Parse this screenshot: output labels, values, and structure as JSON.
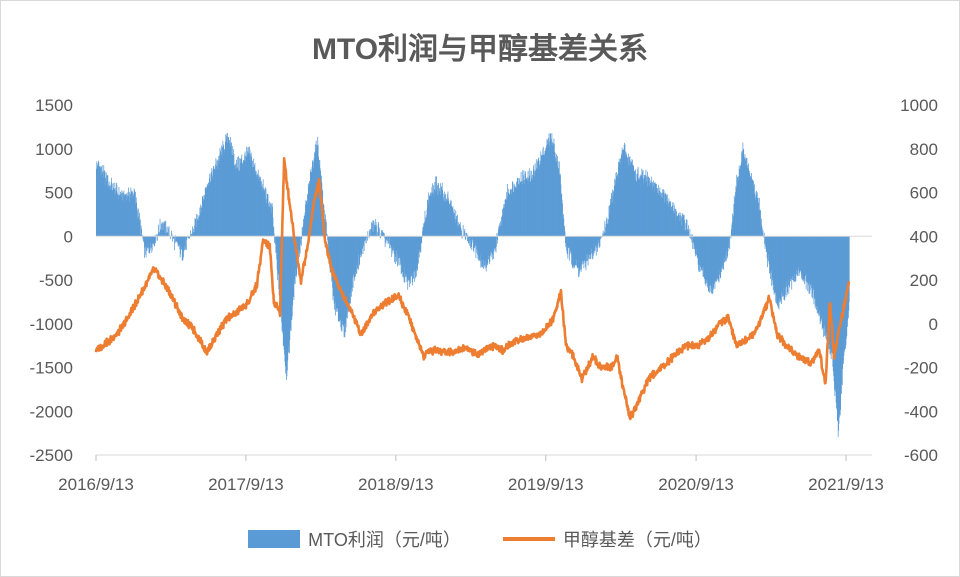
{
  "chart_data": {
    "type": "bar+line",
    "title": "MTO利润与甲醇基差关系",
    "x_tick_labels": [
      "2016/9/13",
      "2017/9/13",
      "2018/9/13",
      "2019/9/13",
      "2020/9/13",
      "2021/9/13"
    ],
    "y_left": {
      "min": -2500,
      "max": 1500,
      "ticks": [
        "1500",
        "1000",
        "500",
        "0",
        "-500",
        "-1000",
        "-1500",
        "-2000",
        "-2500"
      ]
    },
    "y_right": {
      "min": -600,
      "max": 1000,
      "ticks": [
        "1000",
        "800",
        "600",
        "400",
        "200",
        "0",
        "-200",
        "-400",
        "-600"
      ]
    },
    "series": [
      {
        "name": "MTO利润（元/吨）",
        "kind": "bar",
        "axis": "left",
        "color": "#5b9bd5",
        "points": [
          [
            "2016-09-13",
            850
          ],
          [
            "2016-10-15",
            600
          ],
          [
            "2016-11-15",
            450
          ],
          [
            "2016-12-15",
            500
          ],
          [
            "2017-01-10",
            -200
          ],
          [
            "2017-02-01",
            -50
          ],
          [
            "2017-02-20",
            150
          ],
          [
            "2017-03-15",
            0
          ],
          [
            "2017-04-10",
            -200
          ],
          [
            "2017-05-10",
            100
          ],
          [
            "2017-06-10",
            600
          ],
          [
            "2017-07-10",
            900
          ],
          [
            "2017-08-01",
            1150
          ],
          [
            "2017-08-20",
            800
          ],
          [
            "2017-09-20",
            950
          ],
          [
            "2017-10-20",
            600
          ],
          [
            "2017-11-15",
            300
          ],
          [
            "2017-12-05",
            -800
          ],
          [
            "2017-12-20",
            -1600
          ],
          [
            "2018-01-10",
            -500
          ],
          [
            "2018-02-01",
            200
          ],
          [
            "2018-02-20",
            800
          ],
          [
            "2018-03-05",
            1100
          ],
          [
            "2018-03-20",
            400
          ],
          [
            "2018-04-15",
            -800
          ],
          [
            "2018-05-10",
            -1100
          ],
          [
            "2018-06-01",
            -500
          ],
          [
            "2018-06-20",
            -200
          ],
          [
            "2018-07-20",
            150
          ],
          [
            "2018-08-20",
            -50
          ],
          [
            "2018-09-20",
            -300
          ],
          [
            "2018-10-10",
            -550
          ],
          [
            "2018-11-01",
            -400
          ],
          [
            "2018-12-01",
            450
          ],
          [
            "2018-12-20",
            600
          ],
          [
            "2019-01-20",
            400
          ],
          [
            "2019-02-20",
            50
          ],
          [
            "2019-03-20",
            -100
          ],
          [
            "2019-04-15",
            -350
          ],
          [
            "2019-05-10",
            -200
          ],
          [
            "2019-06-10",
            500
          ],
          [
            "2019-07-10",
            650
          ],
          [
            "2019-08-10",
            700
          ],
          [
            "2019-09-01",
            900
          ],
          [
            "2019-09-25",
            1150
          ],
          [
            "2019-10-15",
            800
          ],
          [
            "2019-11-01",
            -150
          ],
          [
            "2019-12-01",
            -400
          ],
          [
            "2019-12-20",
            -300
          ],
          [
            "2020-01-15",
            -150
          ],
          [
            "2020-02-10",
            200
          ],
          [
            "2020-03-01",
            700
          ],
          [
            "2020-03-20",
            1000
          ],
          [
            "2020-04-20",
            700
          ],
          [
            "2020-05-20",
            650
          ],
          [
            "2020-06-20",
            500
          ],
          [
            "2020-07-20",
            300
          ],
          [
            "2020-08-20",
            150
          ],
          [
            "2020-09-20",
            -350
          ],
          [
            "2020-10-20",
            -650
          ],
          [
            "2020-11-10",
            -450
          ],
          [
            "2020-12-01",
            -150
          ],
          [
            "2020-12-20",
            600
          ],
          [
            "2021-01-05",
            1000
          ],
          [
            "2021-01-25",
            650
          ],
          [
            "2021-02-15",
            300
          ],
          [
            "2021-03-10",
            -400
          ],
          [
            "2021-03-30",
            -800
          ],
          [
            "2021-04-20",
            -600
          ],
          [
            "2021-05-20",
            -400
          ],
          [
            "2021-06-20",
            -600
          ],
          [
            "2021-07-15",
            -1000
          ],
          [
            "2021-08-10",
            -1400
          ],
          [
            "2021-08-25",
            -2300
          ],
          [
            "2021-09-05",
            -1500
          ],
          [
            "2021-09-20",
            -800
          ]
        ]
      },
      {
        "name": "甲醇基差（元/吨）",
        "kind": "line",
        "axis": "right",
        "color": "#ed7d31",
        "points": [
          [
            "2016-09-13",
            -120
          ],
          [
            "2016-10-15",
            -80
          ],
          [
            "2016-11-15",
            -20
          ],
          [
            "2016-12-15",
            80
          ],
          [
            "2017-01-10",
            170
          ],
          [
            "2017-02-01",
            250
          ],
          [
            "2017-02-20",
            200
          ],
          [
            "2017-03-15",
            130
          ],
          [
            "2017-04-10",
            30
          ],
          [
            "2017-05-10",
            -30
          ],
          [
            "2017-06-10",
            -130
          ],
          [
            "2017-07-10",
            -30
          ],
          [
            "2017-08-01",
            30
          ],
          [
            "2017-08-20",
            50
          ],
          [
            "2017-09-20",
            100
          ],
          [
            "2017-10-10",
            180
          ],
          [
            "2017-10-25",
            380
          ],
          [
            "2017-11-10",
            350
          ],
          [
            "2017-11-20",
            100
          ],
          [
            "2017-12-05",
            50
          ],
          [
            "2017-12-15",
            750
          ],
          [
            "2017-12-25",
            600
          ],
          [
            "2018-01-10",
            380
          ],
          [
            "2018-01-25",
            200
          ],
          [
            "2018-02-10",
            350
          ],
          [
            "2018-02-25",
            550
          ],
          [
            "2018-03-10",
            650
          ],
          [
            "2018-03-25",
            380
          ],
          [
            "2018-04-10",
            250
          ],
          [
            "2018-04-25",
            180
          ],
          [
            "2018-05-10",
            120
          ],
          [
            "2018-05-30",
            50
          ],
          [
            "2018-06-20",
            -50
          ],
          [
            "2018-07-20",
            50
          ],
          [
            "2018-08-20",
            100
          ],
          [
            "2018-09-20",
            130
          ],
          [
            "2018-10-10",
            50
          ],
          [
            "2018-10-30",
            -50
          ],
          [
            "2018-11-20",
            -150
          ],
          [
            "2018-12-15",
            -120
          ],
          [
            "2019-01-20",
            -130
          ],
          [
            "2019-03-01",
            -110
          ],
          [
            "2019-04-01",
            -140
          ],
          [
            "2019-05-01",
            -100
          ],
          [
            "2019-06-01",
            -120
          ],
          [
            "2019-07-01",
            -80
          ],
          [
            "2019-08-01",
            -60
          ],
          [
            "2019-09-01",
            -50
          ],
          [
            "2019-10-01",
            20
          ],
          [
            "2019-10-20",
            150
          ],
          [
            "2019-11-01",
            -100
          ],
          [
            "2019-11-20",
            -150
          ],
          [
            "2019-12-10",
            -250
          ],
          [
            "2020-01-05",
            -150
          ],
          [
            "2020-01-25",
            -200
          ],
          [
            "2020-02-20",
            -200
          ],
          [
            "2020-03-05",
            -150
          ],
          [
            "2020-03-20",
            -300
          ],
          [
            "2020-04-05",
            -430
          ],
          [
            "2020-04-20",
            -380
          ],
          [
            "2020-05-20",
            -250
          ],
          [
            "2020-06-20",
            -200
          ],
          [
            "2020-07-20",
            -150
          ],
          [
            "2020-08-20",
            -100
          ],
          [
            "2020-09-20",
            -100
          ],
          [
            "2020-10-20",
            -50
          ],
          [
            "2020-11-10",
            0
          ],
          [
            "2020-12-01",
            30
          ],
          [
            "2020-12-20",
            -100
          ],
          [
            "2021-01-10",
            -80
          ],
          [
            "2021-02-01",
            -50
          ],
          [
            "2021-02-20",
            30
          ],
          [
            "2021-03-10",
            120
          ],
          [
            "2021-03-30",
            -50
          ],
          [
            "2021-04-20",
            -100
          ],
          [
            "2021-05-20",
            -150
          ],
          [
            "2021-06-20",
            -180
          ],
          [
            "2021-07-10",
            -120
          ],
          [
            "2021-07-25",
            -280
          ],
          [
            "2021-08-05",
            100
          ],
          [
            "2021-08-15",
            -150
          ],
          [
            "2021-08-25",
            -50
          ],
          [
            "2021-09-05",
            50
          ],
          [
            "2021-09-20",
            180
          ]
        ]
      }
    ]
  }
}
